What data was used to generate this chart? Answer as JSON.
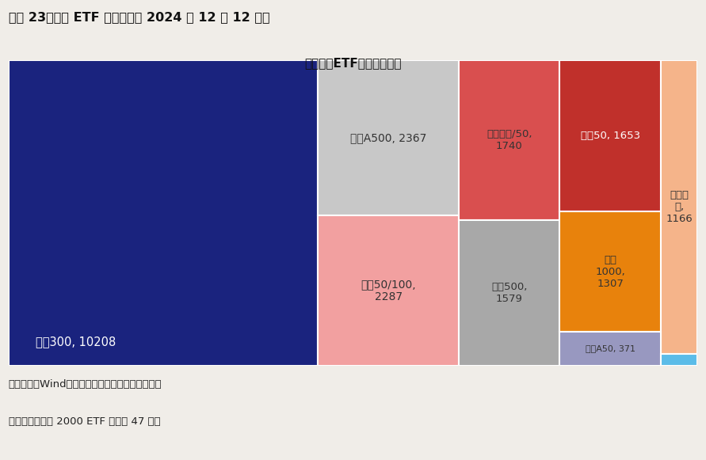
{
  "title": "最新宽基ETF规模（亿元）",
  "header": "图表 23、宽基 ETF 规模（截至 2024 年 12 月 12 日）",
  "footer1": "资料来源：Wind，兴业证券经济与金融研究院整理",
  "footer2": "注：右下角中证 2000 ETF 规模为 47 亿元",
  "labels": [
    "沪深300",
    "中证A500",
    "科创50/100",
    "创业板指/50",
    "上证50",
    "中证500",
    "中证1000",
    "其他宽基",
    "中证A50",
    "中证2000"
  ],
  "values": [
    10208,
    2367,
    2287,
    1740,
    1653,
    1579,
    1307,
    1166,
    371,
    47
  ],
  "colors": [
    "#1a237e",
    "#c8c8c8",
    "#f2a0a0",
    "#d94f4f",
    "#c0302b",
    "#a8a8a8",
    "#e8820c",
    "#f5b48a",
    "#9898c0",
    "#5bbce8"
  ],
  "text_colors": [
    "#ffffff",
    "#333333",
    "#333333",
    "#333333",
    "#ffffff",
    "#333333",
    "#333333",
    "#333333",
    "#333333",
    "#333333"
  ],
  "background_color": "#f0ede8",
  "plot_bg": "#ffffff",
  "figsize": [
    8.91,
    5.81
  ],
  "dpi": 100,
  "label_display": [
    "沪深300, 10208",
    "中证A500, 2367",
    "科创50/100,\n2287",
    "创业板指/50,\n1740",
    "上证50, 1653",
    "中证500,\n1579",
    "中证\n1000,\n1307",
    "其他宽\n基,\n1166",
    "中证A50, 371",
    ""
  ]
}
